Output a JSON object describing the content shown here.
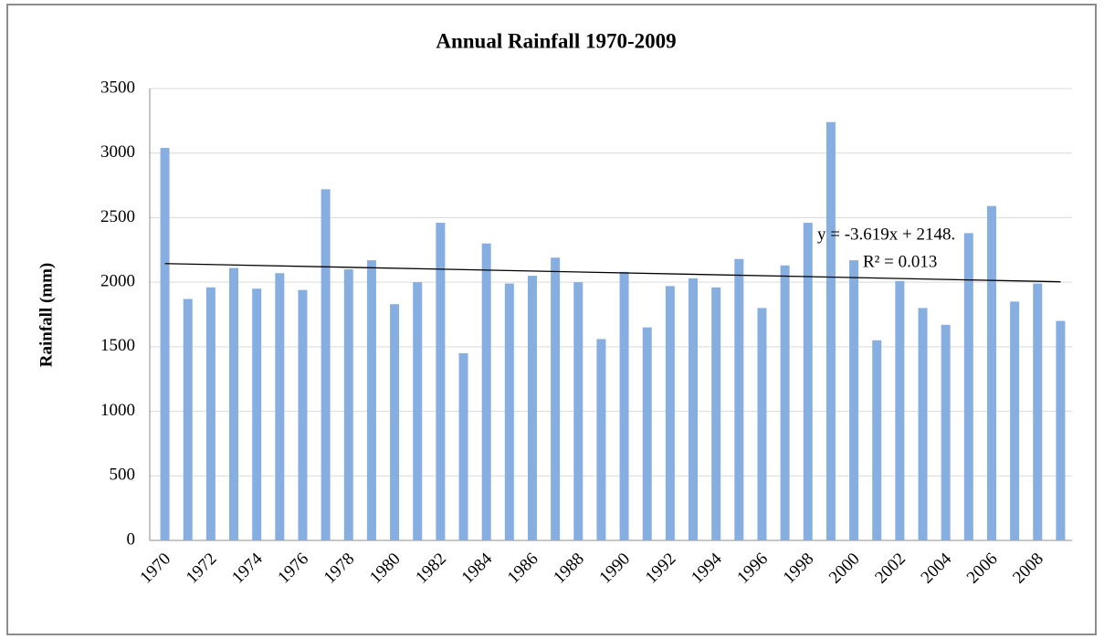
{
  "chart_data": {
    "type": "bar",
    "title": "Annual  Rainfall 1970-2009",
    "y_label": "Rainfall (mm)",
    "categories": [
      "1970",
      null,
      "1972",
      null,
      "1974",
      null,
      "1976",
      null,
      "1978",
      null,
      "1980",
      null,
      "1982",
      null,
      "1984",
      null,
      "1986",
      null,
      "1988",
      null,
      "1990",
      null,
      "1992",
      null,
      "1994",
      null,
      "1996",
      null,
      "1998",
      null,
      "2000",
      null,
      "2002",
      null,
      "2004",
      null,
      "2006",
      null,
      "2008",
      null
    ],
    "values": [
      3040,
      1870,
      1960,
      2110,
      1950,
      2070,
      1940,
      2720,
      2100,
      2170,
      1830,
      2000,
      2460,
      1450,
      2300,
      1990,
      2050,
      2190,
      2000,
      1560,
      2080,
      1650,
      1970,
      2030,
      1960,
      2180,
      1800,
      2130,
      2460,
      3240,
      2170,
      1550,
      2010,
      1800,
      1670,
      2380,
      2590,
      1850,
      1990,
      1700
    ],
    "color": "#86aee0",
    "ylim": [
      0,
      3500
    ],
    "yticks": [
      0,
      500,
      1000,
      1500,
      2000,
      2500,
      3000,
      3500
    ],
    "grid": true,
    "trendline": {
      "slope": -3.619,
      "intercept": 2148,
      "label": "y = -3.619x + 2148.",
      "r2_label": "R² = 0.013",
      "color": "#000000"
    }
  }
}
